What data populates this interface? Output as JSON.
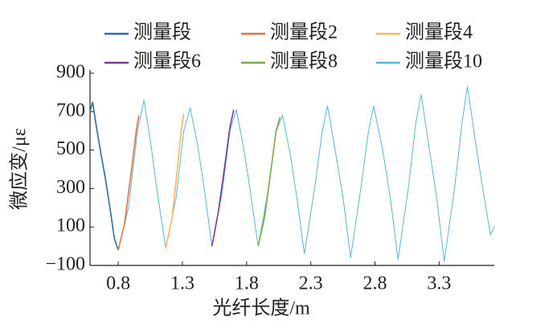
{
  "chart_data": {
    "type": "line",
    "xlabel": "光纤长度/m",
    "ylabel": "微应变/με",
    "xlim": [
      0.58,
      3.73
    ],
    "xticks": [
      0.8,
      1.3,
      1.8,
      2.3,
      2.8,
      3.3
    ],
    "ylim": [
      -100,
      900
    ],
    "yticks": [
      {
        "value": -100,
        "label": "−100"
      },
      100,
      300,
      500,
      700,
      900
    ],
    "series": [
      {
        "name": "测量段",
        "color": "#2c6f9e",
        "x": [
          0.58,
          0.6,
          0.63,
          0.66,
          0.7,
          0.74,
          0.77,
          0.8
        ],
        "values": [
          700,
          750,
          620,
          500,
          350,
          180,
          40,
          -20
        ]
      },
      {
        "name": "测量段2",
        "color": "#d9773a",
        "x": [
          0.8,
          0.85,
          0.9,
          0.94,
          0.96
        ],
        "values": [
          -20,
          120,
          380,
          600,
          680
        ]
      },
      {
        "name": "测量段4",
        "color": "#f0b860",
        "x": [
          1.17,
          1.22,
          1.26,
          1.29,
          1.31
        ],
        "values": [
          -10,
          150,
          400,
          600,
          690
        ]
      },
      {
        "name": "测量段6",
        "color": "#7b3a96",
        "x": [
          1.53,
          1.58,
          1.63,
          1.67,
          1.7
        ],
        "values": [
          0,
          180,
          420,
          620,
          710
        ]
      },
      {
        "name": "测量段8",
        "color": "#7aab48",
        "x": [
          1.89,
          1.94,
          1.99,
          2.03,
          2.06
        ],
        "values": [
          0,
          150,
          400,
          600,
          670
        ]
      },
      {
        "name": "测量段10",
        "color": "#5ab4d8",
        "x": [
          0.8,
          0.88,
          0.95,
          1.0,
          1.05,
          1.1,
          1.17,
          1.25,
          1.31,
          1.36,
          1.42,
          1.47,
          1.53,
          1.61,
          1.67,
          1.72,
          1.78,
          1.83,
          1.89,
          1.97,
          2.03,
          2.08,
          2.14,
          2.19,
          2.25,
          2.33,
          2.39,
          2.43,
          2.49,
          2.55,
          2.61,
          2.69,
          2.75,
          2.79,
          2.86,
          2.92,
          2.98,
          3.06,
          3.12,
          3.16,
          3.22,
          3.28,
          3.34,
          3.42,
          3.48,
          3.52,
          3.58,
          3.64,
          3.7,
          3.73
        ],
        "values": [
          -20,
          200,
          600,
          760,
          550,
          300,
          -10,
          250,
          600,
          720,
          520,
          300,
          0,
          280,
          600,
          710,
          500,
          280,
          0,
          300,
          600,
          680,
          480,
          260,
          -40,
          300,
          600,
          730,
          500,
          260,
          -60,
          300,
          600,
          730,
          500,
          250,
          -70,
          300,
          650,
          790,
          520,
          260,
          -80,
          300,
          650,
          830,
          560,
          300,
          60,
          100
        ]
      }
    ]
  }
}
